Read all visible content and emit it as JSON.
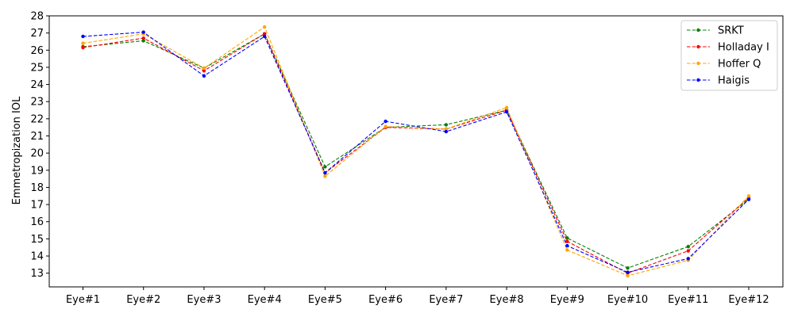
{
  "chart_data": {
    "type": "line",
    "title": "",
    "xlabel": "",
    "ylabel": "Emmetropization IOL",
    "ylim": [
      12.2,
      28
    ],
    "yticks": [
      13,
      14,
      15,
      16,
      17,
      18,
      19,
      20,
      21,
      22,
      23,
      24,
      25,
      26,
      27,
      28
    ],
    "categories": [
      "Eye#1",
      "Eye#2",
      "Eye#3",
      "Eye#4",
      "Eye#5",
      "Eye#6",
      "Eye#7",
      "Eye#8",
      "Eye#9",
      "Eye#10",
      "Eye#11",
      "Eye#12"
    ],
    "grid": false,
    "legend_position": "top-right",
    "series": [
      {
        "name": "SRKT",
        "color": "#008000",
        "values": [
          26.2,
          26.55,
          24.95,
          26.95,
          19.2,
          21.5,
          21.65,
          22.5,
          15.05,
          13.3,
          14.55,
          17.3
        ]
      },
      {
        "name": "Holladay I",
        "color": "#ff0000",
        "values": [
          26.15,
          26.7,
          24.8,
          26.95,
          18.85,
          21.5,
          21.4,
          22.5,
          14.85,
          13.0,
          14.3,
          17.4
        ]
      },
      {
        "name": "Hoffer Q",
        "color": "#ffa500",
        "values": [
          26.4,
          26.95,
          24.95,
          27.35,
          18.65,
          21.55,
          21.4,
          22.65,
          14.35,
          12.85,
          13.75,
          17.5
        ]
      },
      {
        "name": "Haigis",
        "color": "#0000ff",
        "values": [
          26.8,
          27.05,
          24.5,
          26.8,
          18.85,
          21.85,
          21.25,
          22.4,
          14.6,
          13.05,
          13.85,
          17.3
        ]
      }
    ]
  }
}
